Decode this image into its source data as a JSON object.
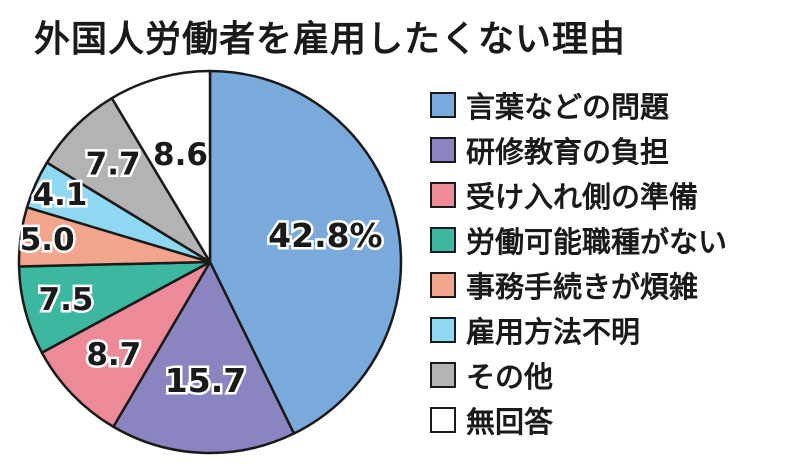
{
  "chart_data": {
    "type": "pie",
    "title": "外国人労働者を雇用したくない理由",
    "unit": "%",
    "slices": [
      {
        "label": "言葉などの問題",
        "value": 42.8,
        "display": "42.8%",
        "color": "#7aa9dc"
      },
      {
        "label": "研修教育の負担",
        "value": 15.7,
        "display": "15.7",
        "color": "#8a85c0"
      },
      {
        "label": "受け入れ側の準備",
        "value": 8.7,
        "display": "8.7",
        "color": "#ec8a98"
      },
      {
        "label": "労働可能職種がない",
        "value": 7.5,
        "display": "7.5",
        "color": "#3cb8a0"
      },
      {
        "label": "事務手続きが煩雑",
        "value": 5.0,
        "display": "5.0",
        "color": "#f2a48c"
      },
      {
        "label": "雇用方法不明",
        "value": 4.1,
        "display": "4.1",
        "color": "#8ed8f2"
      },
      {
        "label": "その他",
        "value": 7.7,
        "display": "7.7",
        "color": "#b3b3b3"
      },
      {
        "label": "無回答",
        "value": 8.6,
        "display": "8.6",
        "color": "#ffffff"
      }
    ]
  }
}
